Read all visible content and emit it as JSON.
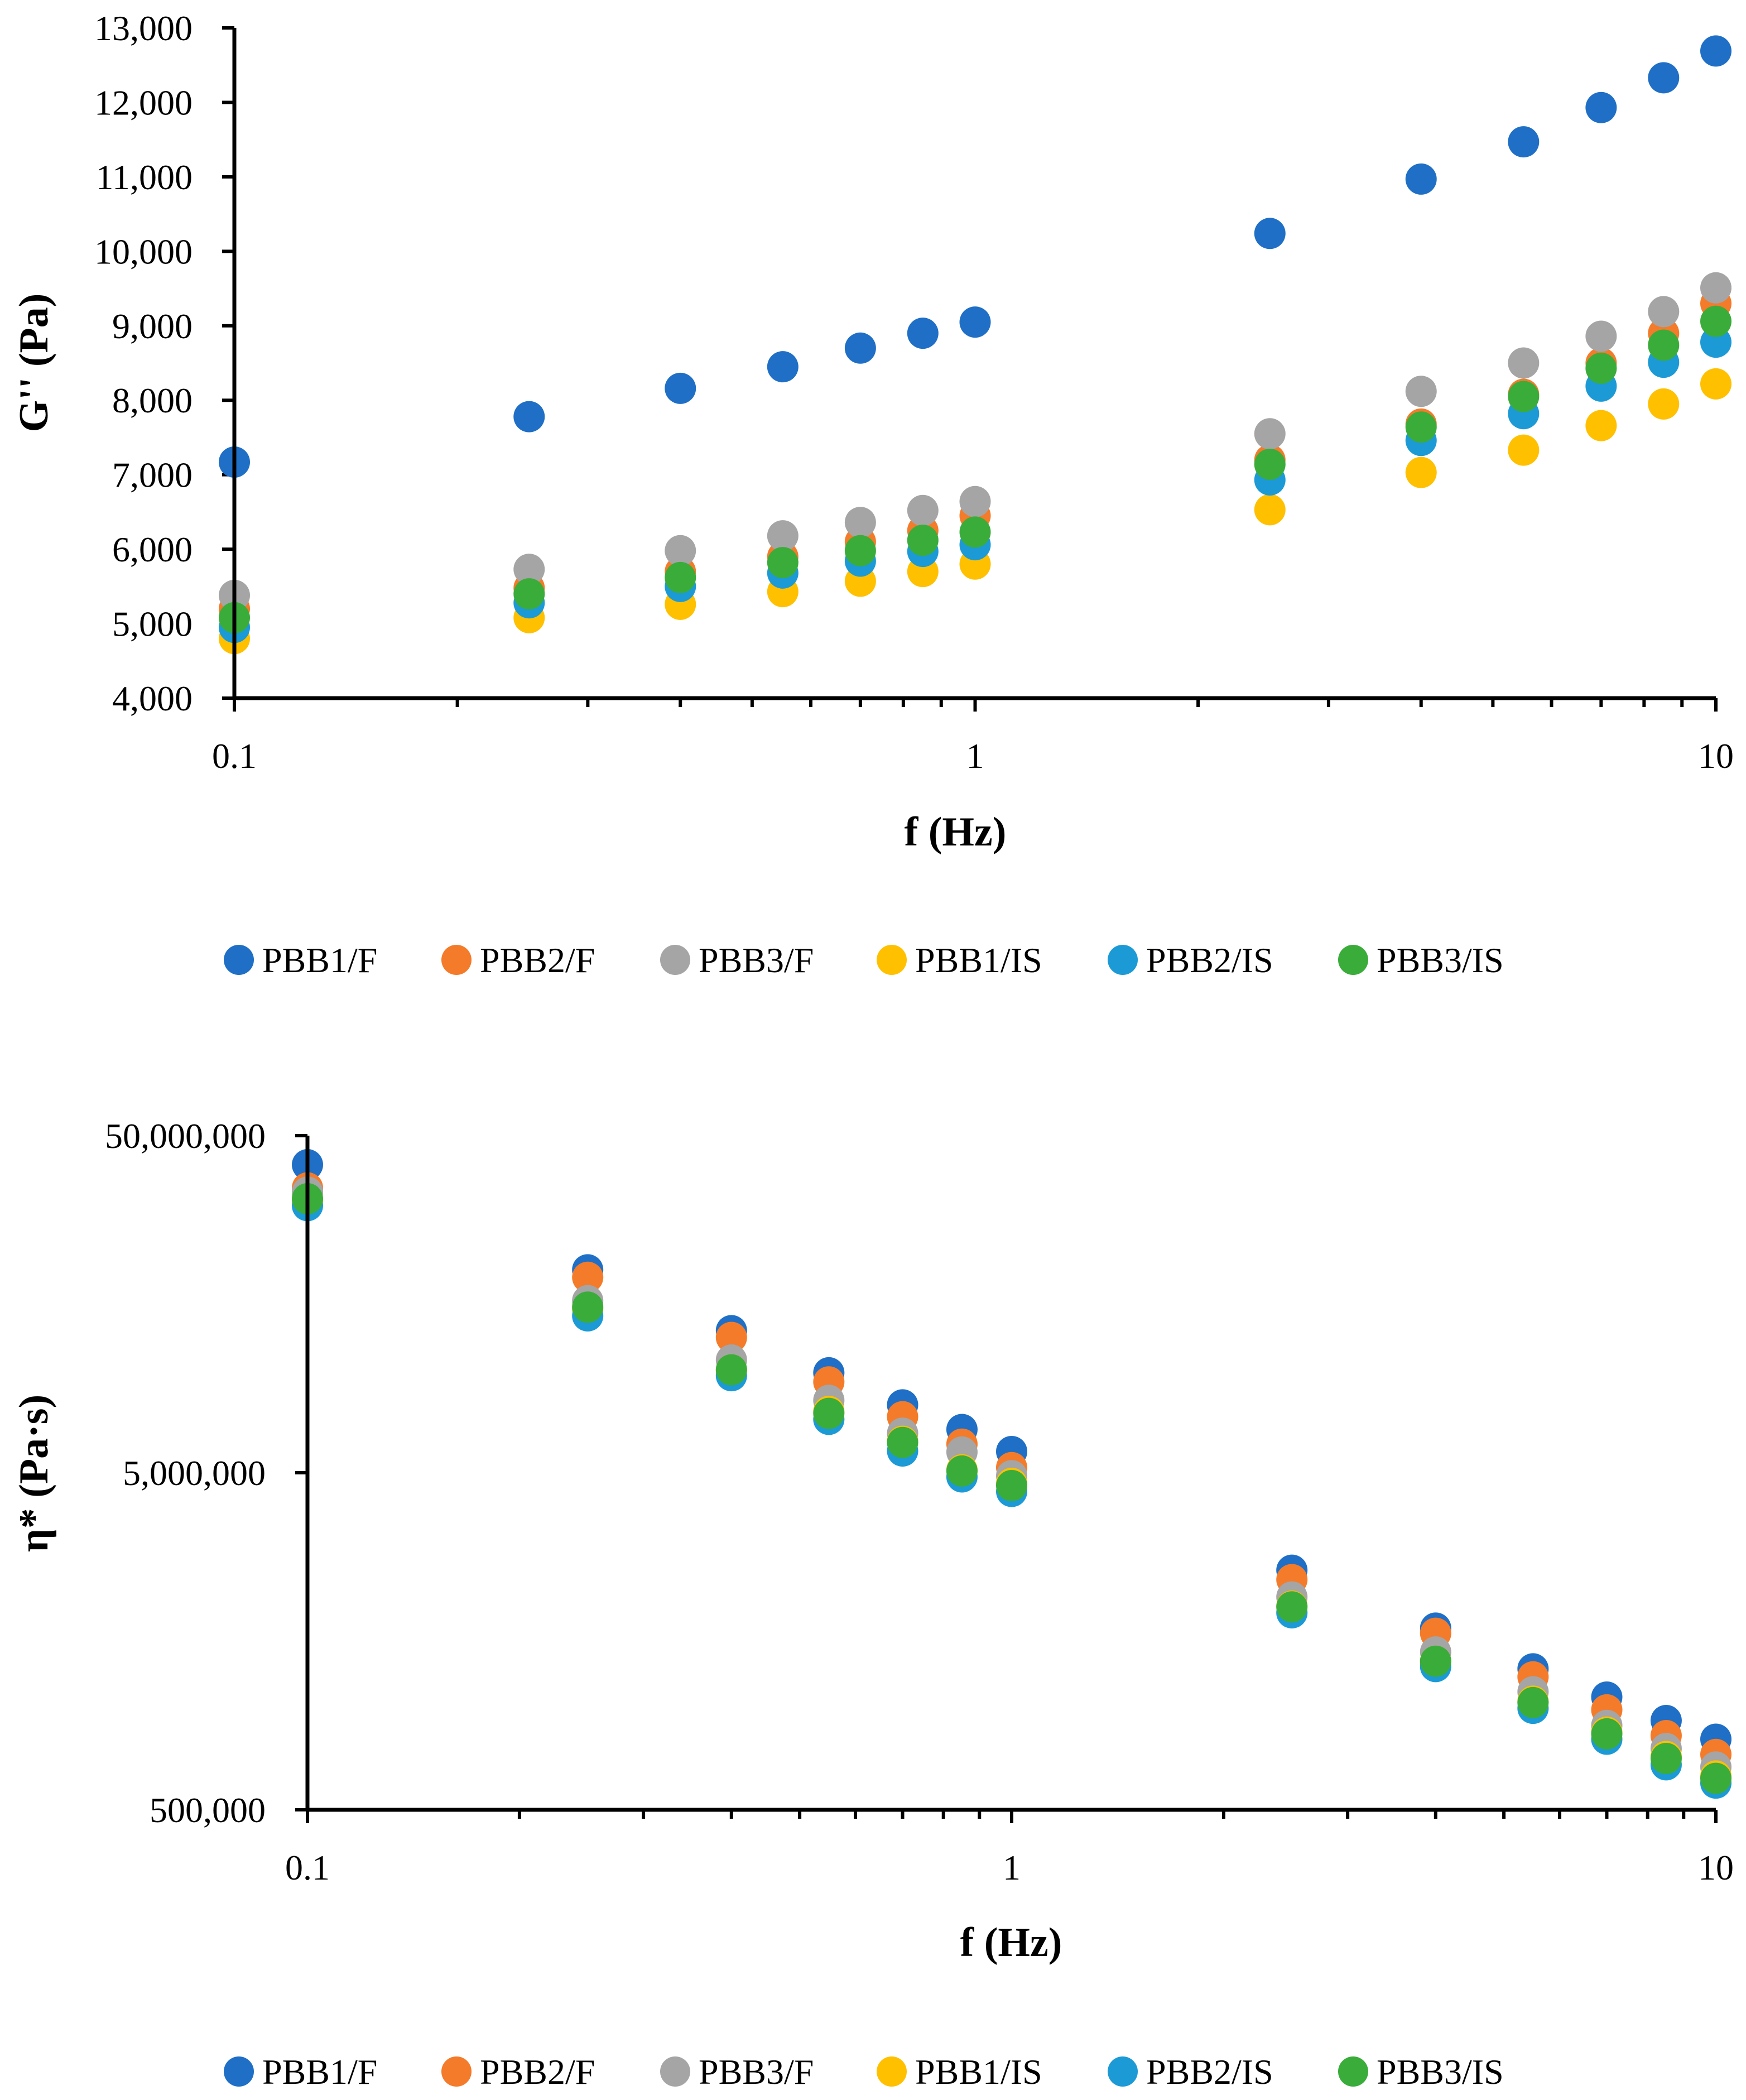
{
  "chart_data": [
    {
      "type": "scatter",
      "title": "",
      "xlabel": "f (Hz)",
      "ylabel": "G'' (Pa)",
      "xscale": "log",
      "xlim": [
        0.1,
        10
      ],
      "ylim": [
        4000,
        13000
      ],
      "grid": false,
      "legend_position": "bottom",
      "x_ticks": [
        0.1,
        1,
        10
      ],
      "x_tick_labels": [
        "0.1",
        "1",
        "10"
      ],
      "y_ticks": [
        4000,
        5000,
        6000,
        7000,
        8000,
        9000,
        10000,
        11000,
        12000,
        13000
      ],
      "y_tick_labels": [
        "4,000",
        "5,000",
        "6,000",
        "7,000",
        "8,000",
        "9,000",
        "10,000",
        "11,000",
        "12,000",
        "13,000"
      ],
      "x": [
        0.1,
        0.25,
        0.4,
        0.55,
        0.7,
        0.85,
        1,
        2.5,
        4,
        5.5,
        7,
        8.5,
        10
      ],
      "series": [
        {
          "name": "PBB1/F",
          "color": "#1f6fc6",
          "values": [
            7170,
            7780,
            8160,
            8450,
            8700,
            8900,
            9050,
            10240,
            10970,
            11470,
            11930,
            12330,
            12690
          ]
        },
        {
          "name": "PBB2/F",
          "color": "#f47b2a",
          "values": [
            5200,
            5480,
            5700,
            5900,
            6100,
            6250,
            6450,
            7200,
            7680,
            8080,
            8500,
            8900,
            9300
          ]
        },
        {
          "name": "PBB3/F",
          "color": "#a5a5a5",
          "values": [
            5380,
            5730,
            5980,
            6180,
            6360,
            6520,
            6640,
            7550,
            8120,
            8500,
            8860,
            9190,
            9510
          ]
        },
        {
          "name": "PBB1/IS",
          "color": "#ffc000",
          "values": [
            4800,
            5080,
            5260,
            5430,
            5570,
            5700,
            5800,
            6530,
            7030,
            7330,
            7660,
            7950,
            8220
          ]
        },
        {
          "name": "PBB2/IS",
          "color": "#1c9ad6",
          "values": [
            4950,
            5280,
            5500,
            5680,
            5840,
            5970,
            6060,
            6930,
            7460,
            7820,
            8190,
            8510,
            8780
          ]
        },
        {
          "name": "PBB3/IS",
          "color": "#3aac3a",
          "values": [
            5080,
            5400,
            5620,
            5820,
            5980,
            6120,
            6230,
            7140,
            7640,
            8050,
            8430,
            8740,
            9060
          ]
        }
      ]
    },
    {
      "type": "scatter",
      "title": "",
      "xlabel": "f (Hz)",
      "ylabel": "η* (Pa·s)",
      "xscale": "log",
      "yscale": "log",
      "xlim": [
        0.1,
        10
      ],
      "ylim": [
        500000,
        50000000
      ],
      "grid": false,
      "legend_position": "bottom",
      "x_ticks": [
        0.1,
        1,
        10
      ],
      "x_tick_labels": [
        "0.1",
        "1",
        "10"
      ],
      "y_ticks": [
        500000,
        5000000,
        50000000
      ],
      "y_tick_labels": [
        "500,000",
        "5,000,000",
        "50,000,000"
      ],
      "x": [
        0.1,
        0.25,
        0.4,
        0.55,
        0.7,
        0.85,
        1,
        2.5,
        4,
        5.5,
        7,
        8.5,
        10
      ],
      "series": [
        {
          "name": "PBB1/F",
          "color": "#1f6fc6",
          "values": [
            41000000,
            20000000,
            13200000,
            9900000,
            7950000,
            6720000,
            5780000,
            2570000,
            1730000,
            1310000,
            1080000,
            920000,
            810000
          ]
        },
        {
          "name": "PBB2/F",
          "color": "#f47b2a",
          "values": [
            35000000,
            19000000,
            12600000,
            9300000,
            7330000,
            6080000,
            5180000,
            2410000,
            1670000,
            1240000,
            990000,
            830000,
            730000
          ]
        },
        {
          "name": "PBB3/F",
          "color": "#a5a5a5",
          "values": [
            34000000,
            16200000,
            10800000,
            8200000,
            6550000,
            5760000,
            4900000,
            2140000,
            1470000,
            1120000,
            890000,
            760000,
            670000
          ]
        },
        {
          "name": "PBB1/IS",
          "color": "#ffc000",
          "values": [
            32000000,
            15300000,
            10100000,
            7600000,
            6200000,
            5100000,
            4650000,
            2010000,
            1380000,
            1050000,
            850000,
            720000,
            630000
          ]
        },
        {
          "name": "PBB2/IS",
          "color": "#1c9ad6",
          "values": [
            31000000,
            14600000,
            9700000,
            7200000,
            5800000,
            4860000,
            4400000,
            1920000,
            1330000,
            1000000,
            810000,
            680000,
            600000
          ]
        },
        {
          "name": "PBB3/IS",
          "color": "#3aac3a",
          "values": [
            32500000,
            15500000,
            10100000,
            7500000,
            6150000,
            5060000,
            4580000,
            2000000,
            1380000,
            1040000,
            840000,
            710000,
            620000
          ]
        }
      ]
    }
  ]
}
